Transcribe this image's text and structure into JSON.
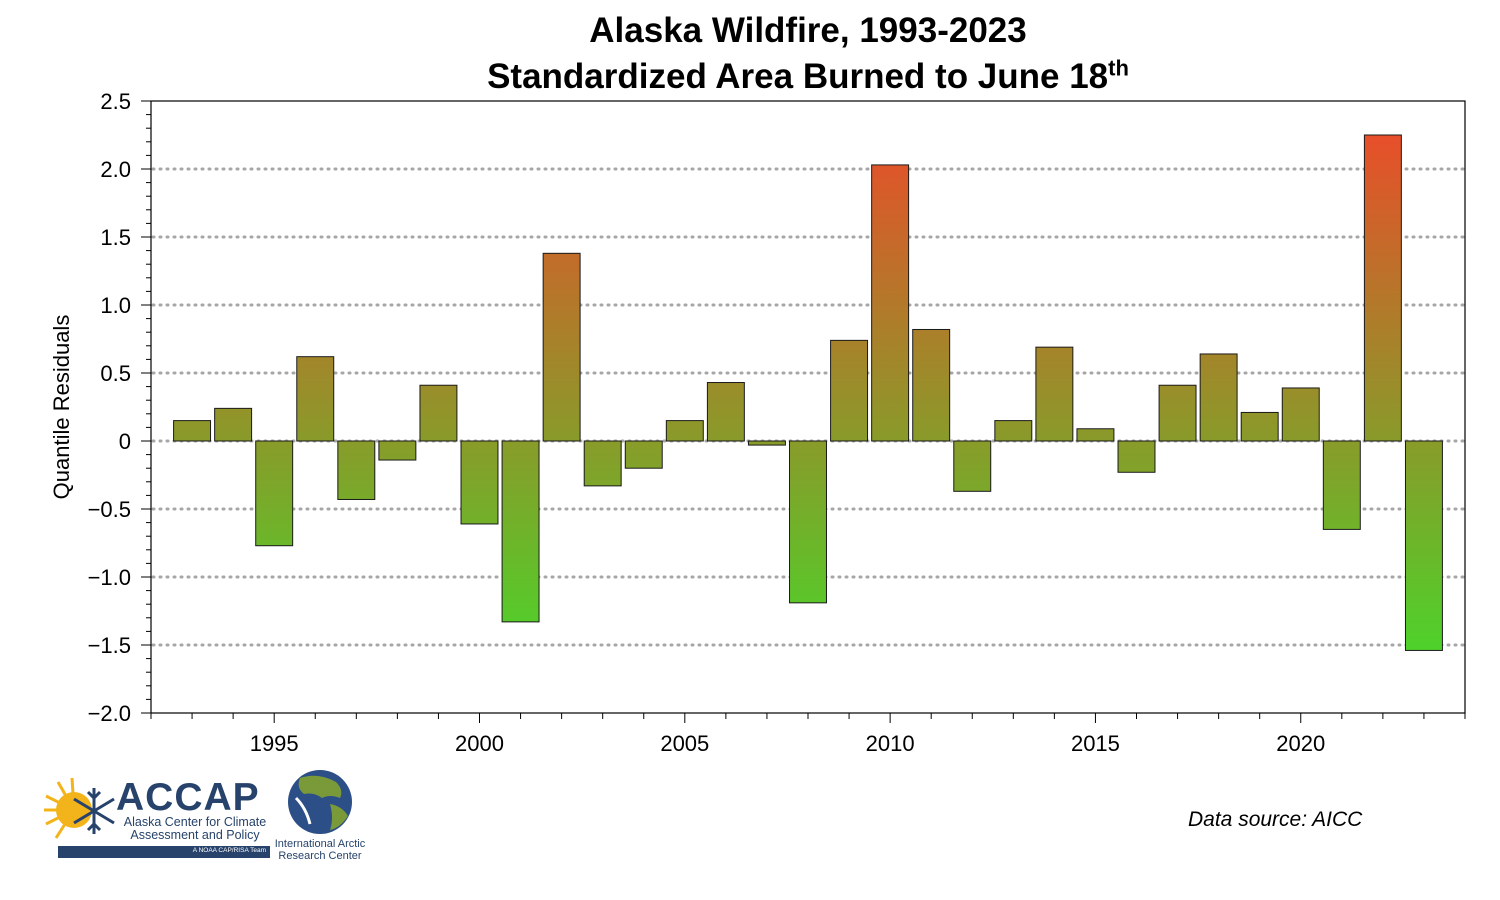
{
  "title_line1": "Alaska Wildfire, 1993-2023",
  "title_line2_main": "Standardized Area Burned to June 18",
  "title_line2_sup": "th",
  "data_source": "Data source: AICC",
  "logos": {
    "accap": {
      "name": "ACCAP",
      "subtitle_line1": "Alaska Center for Climate",
      "subtitle_line2": "Assessment and Policy",
      "tagline": "A NOAA CAP/RISA Team"
    },
    "iarc": {
      "line1": "International Arctic",
      "line2": "Research Center"
    }
  },
  "colors": {
    "bar_low": "#3de22b",
    "bar_mid": "#8a9a2a",
    "bar_high": "#f2462a",
    "grid": "#a6a6a6",
    "accap_blue": "#27436b"
  },
  "chart_data": {
    "type": "bar",
    "title": "Alaska Wildfire, 1993-2023 Standardized Area Burned to June 18th",
    "xlabel": "",
    "ylabel": "Quantile Residuals",
    "ylim": [
      -2.0,
      2.5
    ],
    "xlim": [
      1992,
      2024
    ],
    "y_ticks": [
      "2.5",
      "2.0",
      "1.5",
      "1.0",
      "0.5",
      "0",
      "−0.5",
      "−1.0",
      "−1.5",
      "−2.0"
    ],
    "y_tick_values": [
      2.5,
      2.0,
      1.5,
      1.0,
      0.5,
      0,
      -0.5,
      -1.0,
      -1.5,
      -2.0
    ],
    "x_ticks": [
      "1995",
      "2000",
      "2005",
      "2010",
      "2015",
      "2020"
    ],
    "x_tick_values": [
      1995,
      2000,
      2005,
      2010,
      2015,
      2020
    ],
    "grid": "horizontal dotted at major y ticks",
    "x": [
      1993,
      1994,
      1995,
      1996,
      1997,
      1998,
      1999,
      2000,
      2001,
      2002,
      2003,
      2004,
      2005,
      2006,
      2007,
      2008,
      2009,
      2010,
      2011,
      2012,
      2013,
      2014,
      2015,
      2016,
      2017,
      2018,
      2019,
      2020,
      2021,
      2022,
      2023
    ],
    "values": [
      0.15,
      0.24,
      -0.77,
      0.62,
      -0.43,
      -0.14,
      0.41,
      -0.61,
      -1.33,
      1.38,
      -0.33,
      -0.2,
      0.15,
      0.43,
      -0.03,
      -1.19,
      0.74,
      2.03,
      0.82,
      -0.37,
      0.15,
      0.69,
      0.09,
      -0.23,
      0.41,
      0.64,
      0.21,
      0.39,
      -0.65,
      2.25,
      -1.54
    ]
  }
}
